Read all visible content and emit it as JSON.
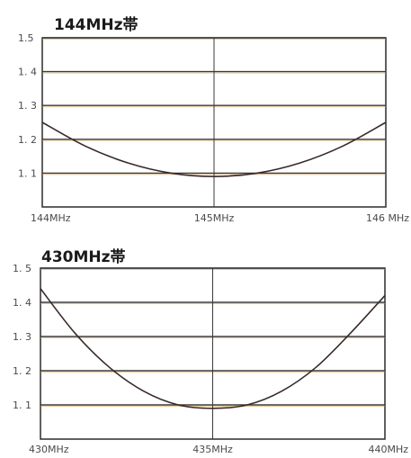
{
  "colors": {
    "background": "#ffffff",
    "frame": "#2b2b2b",
    "grid_primary": "#3a3a3a",
    "grid_tint": "#d6a24a",
    "curve": "#3a2a2a",
    "text": "#1a1a1a",
    "tick_text": "#4a4a4a"
  },
  "chart_data": [
    {
      "type": "line",
      "title": "144MHz帯",
      "xlabel": "",
      "ylabel": "",
      "x_ticks": [
        {
          "x": 144,
          "label": "144MHz"
        },
        {
          "x": 145,
          "label": "145MHz"
        },
        {
          "x": 146,
          "label": "146 MHz"
        }
      ],
      "y_ticks": [
        {
          "y": 1.1,
          "label": "1. 1"
        },
        {
          "y": 1.2,
          "label": "1. 2"
        },
        {
          "y": 1.3,
          "label": "1. 3"
        },
        {
          "y": 1.4,
          "label": "1. 4"
        },
        {
          "y": 1.5,
          "label": "1.5"
        }
      ],
      "xlim": [
        144,
        146
      ],
      "ylim": [
        1.0,
        1.5
      ],
      "grid": true,
      "legend": "none",
      "series": [
        {
          "x": [
            144.0,
            144.25,
            144.5,
            144.75,
            145.0,
            145.25,
            145.5,
            145.75,
            146.0
          ],
          "y": [
            1.25,
            1.18,
            1.13,
            1.1,
            1.09,
            1.1,
            1.13,
            1.18,
            1.25
          ]
        }
      ]
    },
    {
      "type": "line",
      "title": "430MHz帯",
      "xlabel": "",
      "ylabel": "",
      "x_ticks": [
        {
          "x": 430,
          "label": "430MHz"
        },
        {
          "x": 435,
          "label": "435MHz"
        },
        {
          "x": 440,
          "label": "440MHz"
        }
      ],
      "y_ticks": [
        {
          "y": 1.1,
          "label": "1. 1"
        },
        {
          "y": 1.2,
          "label": "1. 2"
        },
        {
          "y": 1.3,
          "label": "1. 3"
        },
        {
          "y": 1.4,
          "label": "1. 4"
        },
        {
          "y": 1.5,
          "label": "1. 5"
        }
      ],
      "xlim": [
        430,
        440
      ],
      "ylim": [
        1.0,
        1.5
      ],
      "grid": true,
      "legend": "none",
      "series": [
        {
          "x": [
            430,
            431,
            432,
            433,
            434,
            435,
            436,
            437,
            438,
            439,
            440
          ],
          "y": [
            1.44,
            1.31,
            1.21,
            1.14,
            1.1,
            1.09,
            1.1,
            1.14,
            1.21,
            1.31,
            1.42
          ]
        }
      ]
    }
  ]
}
